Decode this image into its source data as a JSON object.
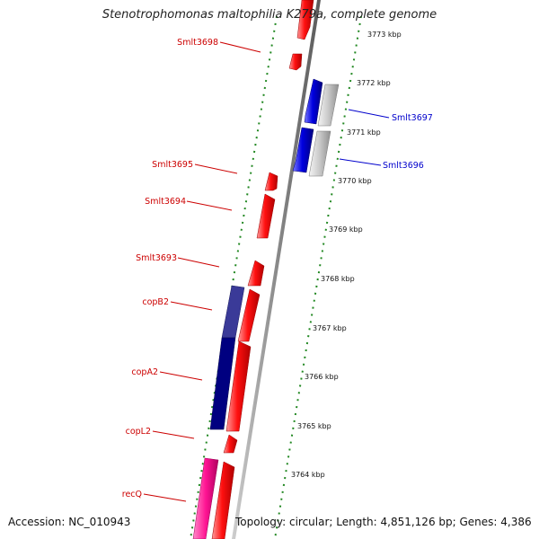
{
  "title": "Stenotrophomonas maltophilia K279a, complete genome",
  "footer": {
    "accession": "Accession: NC_010943",
    "topology": "Topology: circular; Length: 4,851,126 bp; Genes: 4,386"
  },
  "colors": {
    "forward_gene": "#ff0000",
    "highlight_forward": "#0000cc",
    "highlight_reverse": "#c8c8c8",
    "dark_blue": "#000080",
    "slate_blue": "#3a3a98",
    "magenta": "#ff1493",
    "label_red": "#cc0000",
    "label_blue": "#0000cc",
    "ruler_green": "#228822",
    "backbone": "#888888"
  },
  "gene_labels": [
    {
      "text": "Smlt3698",
      "side": "left",
      "color": "red"
    },
    {
      "text": "Smlt3697",
      "side": "right",
      "color": "blue"
    },
    {
      "text": "Smlt3696",
      "side": "right",
      "color": "blue"
    },
    {
      "text": "Smlt3695",
      "side": "left",
      "color": "red"
    },
    {
      "text": "Smlt3694",
      "side": "left",
      "color": "red"
    },
    {
      "text": "Smlt3693",
      "side": "left",
      "color": "red"
    },
    {
      "text": "copB2",
      "side": "left",
      "color": "red"
    },
    {
      "text": "copA2",
      "side": "left",
      "color": "red"
    },
    {
      "text": "copL2",
      "side": "left",
      "color": "red"
    },
    {
      "text": "recQ",
      "side": "left",
      "color": "red"
    }
  ],
  "ruler_ticks": [
    "3773 kbp",
    "3772 kbp",
    "3771 kbp",
    "3770 kbp",
    "3769 kbp",
    "3768 kbp",
    "3767 kbp",
    "3766 kbp",
    "3765 kbp",
    "3764 kbp"
  ]
}
